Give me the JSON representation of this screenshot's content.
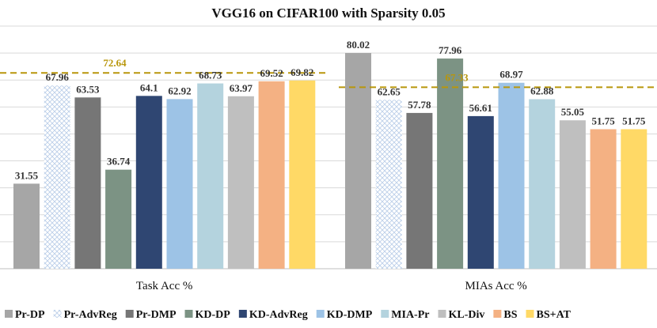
{
  "chart_data": {
    "type": "bar",
    "title": "VGG16 on CIFAR100 with Sparsity 0.05",
    "categories": [
      "Task Acc %",
      "MIAs Acc %"
    ],
    "ylim": [
      0,
      90
    ],
    "grid": true,
    "legend_position": "bottom",
    "series": [
      {
        "name": "Pr-DP",
        "values": [
          31.55,
          80.02
        ],
        "color": "#a6a6a6",
        "pattern": "solid"
      },
      {
        "name": "Pr-AdvReg",
        "values": [
          67.96,
          62.65
        ],
        "color": "#dde8f6",
        "pattern": "crosshatch"
      },
      {
        "name": "Pr-DMP",
        "values": [
          63.53,
          57.78
        ],
        "color": "#767676",
        "pattern": "solid"
      },
      {
        "name": "KD-DP",
        "values": [
          36.74,
          77.96
        ],
        "color": "#7c9384",
        "pattern": "solid"
      },
      {
        "name": "KD-AdvReg",
        "values": [
          64.1,
          56.61
        ],
        "color": "#2f4672",
        "pattern": "solid"
      },
      {
        "name": "KD-DMP",
        "values": [
          62.92,
          68.97
        ],
        "color": "#9dc3e6",
        "pattern": "solid"
      },
      {
        "name": "MIA-Pr",
        "values": [
          68.73,
          62.88
        ],
        "color": "#b4d3de",
        "pattern": "solid"
      },
      {
        "name": "KL-Div",
        "values": [
          63.97,
          55.05
        ],
        "color": "#bfbfbf",
        "pattern": "solid"
      },
      {
        "name": "BS",
        "values": [
          69.52,
          51.75
        ],
        "color": "#f4b183",
        "pattern": "solid"
      },
      {
        "name": "BS+AT",
        "values": [
          69.82,
          51.75
        ],
        "color": "#ffd966",
        "pattern": "solid"
      }
    ],
    "reference_lines": [
      {
        "group": 0,
        "value": 72.64,
        "label": "72.64",
        "color": "#b8960b"
      },
      {
        "group": 1,
        "value": 67.33,
        "label": "67.33",
        "color": "#b8960b"
      }
    ]
  }
}
